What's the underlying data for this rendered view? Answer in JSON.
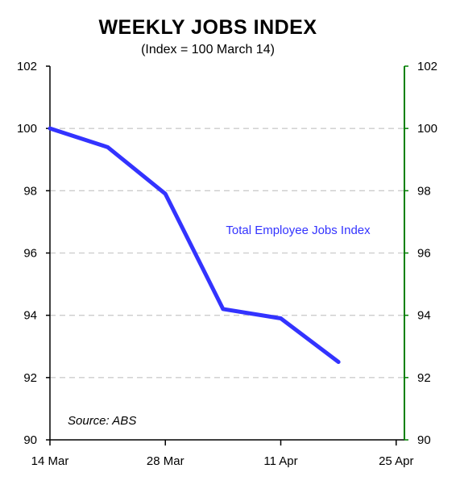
{
  "chart_data": {
    "type": "line",
    "title": "WEEKLY JOBS INDEX",
    "subtitle": "(Index = 100 March 14)",
    "source": "Source: ABS",
    "x_tick_labels": [
      "14 Mar",
      "28 Mar",
      "11 Apr",
      "25 Apr"
    ],
    "x_tick_positions": [
      0,
      14,
      28,
      42
    ],
    "x_domain": [
      0,
      43
    ],
    "ylim": [
      90,
      102
    ],
    "y_ticks": [
      90,
      92,
      94,
      96,
      98,
      100,
      102
    ],
    "y_tick_labels": [
      "90",
      "92",
      "94",
      "96",
      "98",
      "100",
      "102"
    ],
    "grid": true,
    "series": [
      {
        "name": "Total Employee Jobs Index",
        "color": "#3333ff",
        "x": [
          0,
          7,
          14,
          21,
          28,
          35
        ],
        "values": [
          100.0,
          99.4,
          97.9,
          94.2,
          93.9,
          92.5
        ]
      }
    ],
    "colors": {
      "left_axis": "#000000",
      "right_axis": "#008000",
      "grid": "#cccccc"
    }
  }
}
